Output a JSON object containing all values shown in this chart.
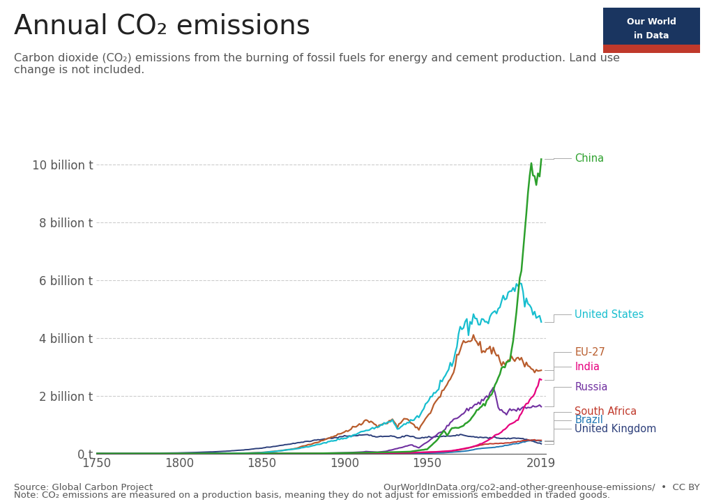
{
  "title": "Annual CO₂ emissions",
  "subtitle": "Carbon dioxide (CO₂) emissions from the burning of fossil fuels for energy and cement production. Land use\nchange is not included.",
  "source_left": "Source: Global Carbon Project",
  "source_right": "OurWorldInData.org/co2-and-other-greenhouse-emissions/  •  CC BY",
  "note": "Note: CO₂ emissions are measured on a production basis, meaning they do not adjust for emissions embedded in traded goods.",
  "background_color": "#ffffff",
  "grid_color": "#cccccc",
  "title_fontsize": 28,
  "subtitle_fontsize": 11.5,
  "tick_fontsize": 12,
  "footer_fontsize": 9.5,
  "logo_bg": "#1a3560",
  "logo_red": "#c0392b",
  "series": {
    "China": {
      "color": "#2ca02c"
    },
    "United States": {
      "color": "#17becf"
    },
    "EU-27": {
      "color": "#b85c2c"
    },
    "India": {
      "color": "#e6007e"
    },
    "Russia": {
      "color": "#7030a0"
    },
    "South Africa": {
      "color": "#c0392b"
    },
    "Brazil": {
      "color": "#1f77b4"
    },
    "United Kingdom": {
      "color": "#2c3e7a"
    }
  },
  "yticks": [
    0,
    2000000000,
    4000000000,
    6000000000,
    8000000000,
    10000000000
  ],
  "ytick_labels": [
    "0 t",
    "2 billion t",
    "4 billion t",
    "6 billion t",
    "8 billion t",
    "10 billion t"
  ],
  "xticks": [
    1750,
    1800,
    1850,
    1900,
    1950,
    2019
  ],
  "xlim": [
    1750,
    2022
  ],
  "ylim": [
    0,
    10800000000
  ]
}
